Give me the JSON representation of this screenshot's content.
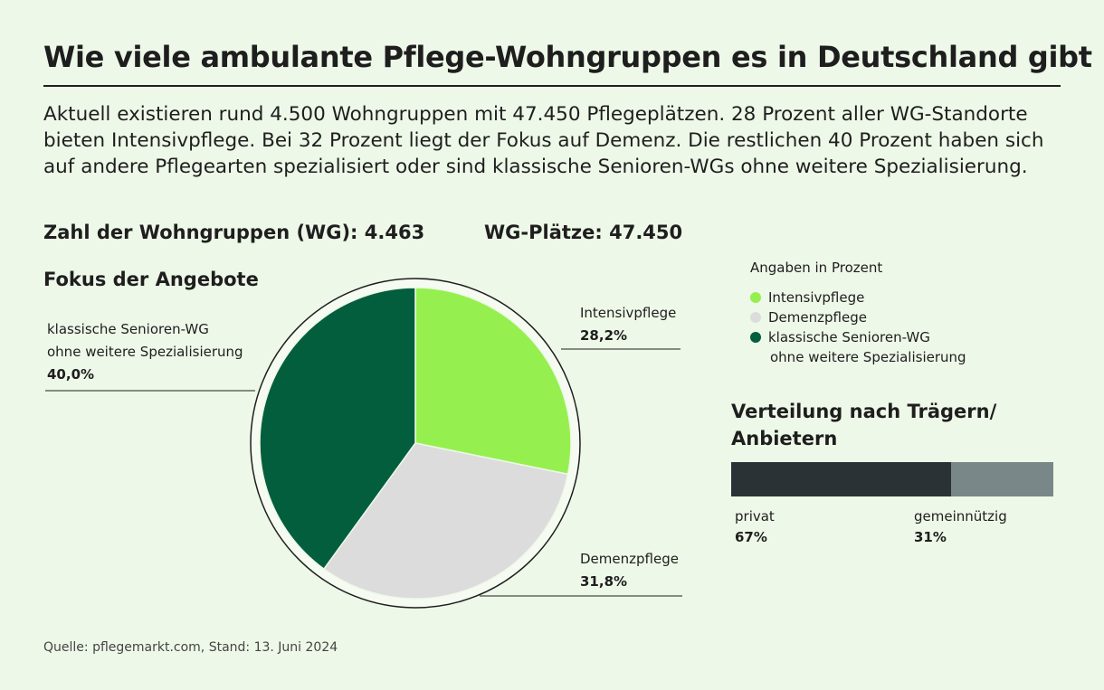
{
  "header": {
    "title": "Wie viele ambulante Pflege-Wohngruppen es in Deutschland gibt",
    "intro": "Aktuell existieren rund 4.500 Wohngruppen mit 47.450 Pflegeplätzen. 28 Prozent aller WG-Standorte bieten Intensivpflege. Bei 32 Prozent liegt der Fokus auf Demenz. Die restlichen 40 Prozent haben sich auf andere Pflegearten spezialisiert oder sind klassische Senioren-WGs ohne weitere Spezialisierung."
  },
  "stats": {
    "wg_count": "Zahl der Wohngruppen (WG): 4.463",
    "places": "WG-Plätze: 47.450"
  },
  "chart_data": [
    {
      "type": "pie",
      "title": "Fokus der Angebote",
      "subtitle": "Angaben in Prozent",
      "slices": [
        {
          "label": "Intensivpflege",
          "value": 28.2,
          "value_label": "28,2%",
          "color": "#95f04f"
        },
        {
          "label": "Demenzpflege",
          "value": 31.8,
          "value_label": "31,8%",
          "color": "#dcdcdc"
        },
        {
          "label_lines": [
            "klassische Senioren-WG",
            "ohne weitere Spezialisierung"
          ],
          "value": 40.0,
          "value_label": "40,0%",
          "color": "#035e3e"
        }
      ],
      "legend": {
        "placement": "top-right",
        "items": [
          {
            "lines": [
              "Intensivpflege"
            ],
            "color": "#95f04f"
          },
          {
            "lines": [
              "Demenzpflege"
            ],
            "color": "#dcdcdc"
          },
          {
            "lines": [
              "klassische Senioren-WG",
              "ohne weitere Spezialisierung"
            ],
            "color": "#035e3e"
          }
        ]
      }
    },
    {
      "type": "bar",
      "orientation": "horizontal-stacked",
      "title": "Verteilung nach Trägern/ Anbietern",
      "segments": [
        {
          "label": "privat",
          "value": 67,
          "value_label": "67%",
          "color": "#2b3236"
        },
        {
          "label": "gemeinnützig",
          "value": 31,
          "value_label": "31%",
          "color": "#7a8788"
        }
      ]
    }
  ],
  "footer": {
    "source": "Quelle: pflegemarkt.com, Stand: 13. Juni 2024"
  }
}
